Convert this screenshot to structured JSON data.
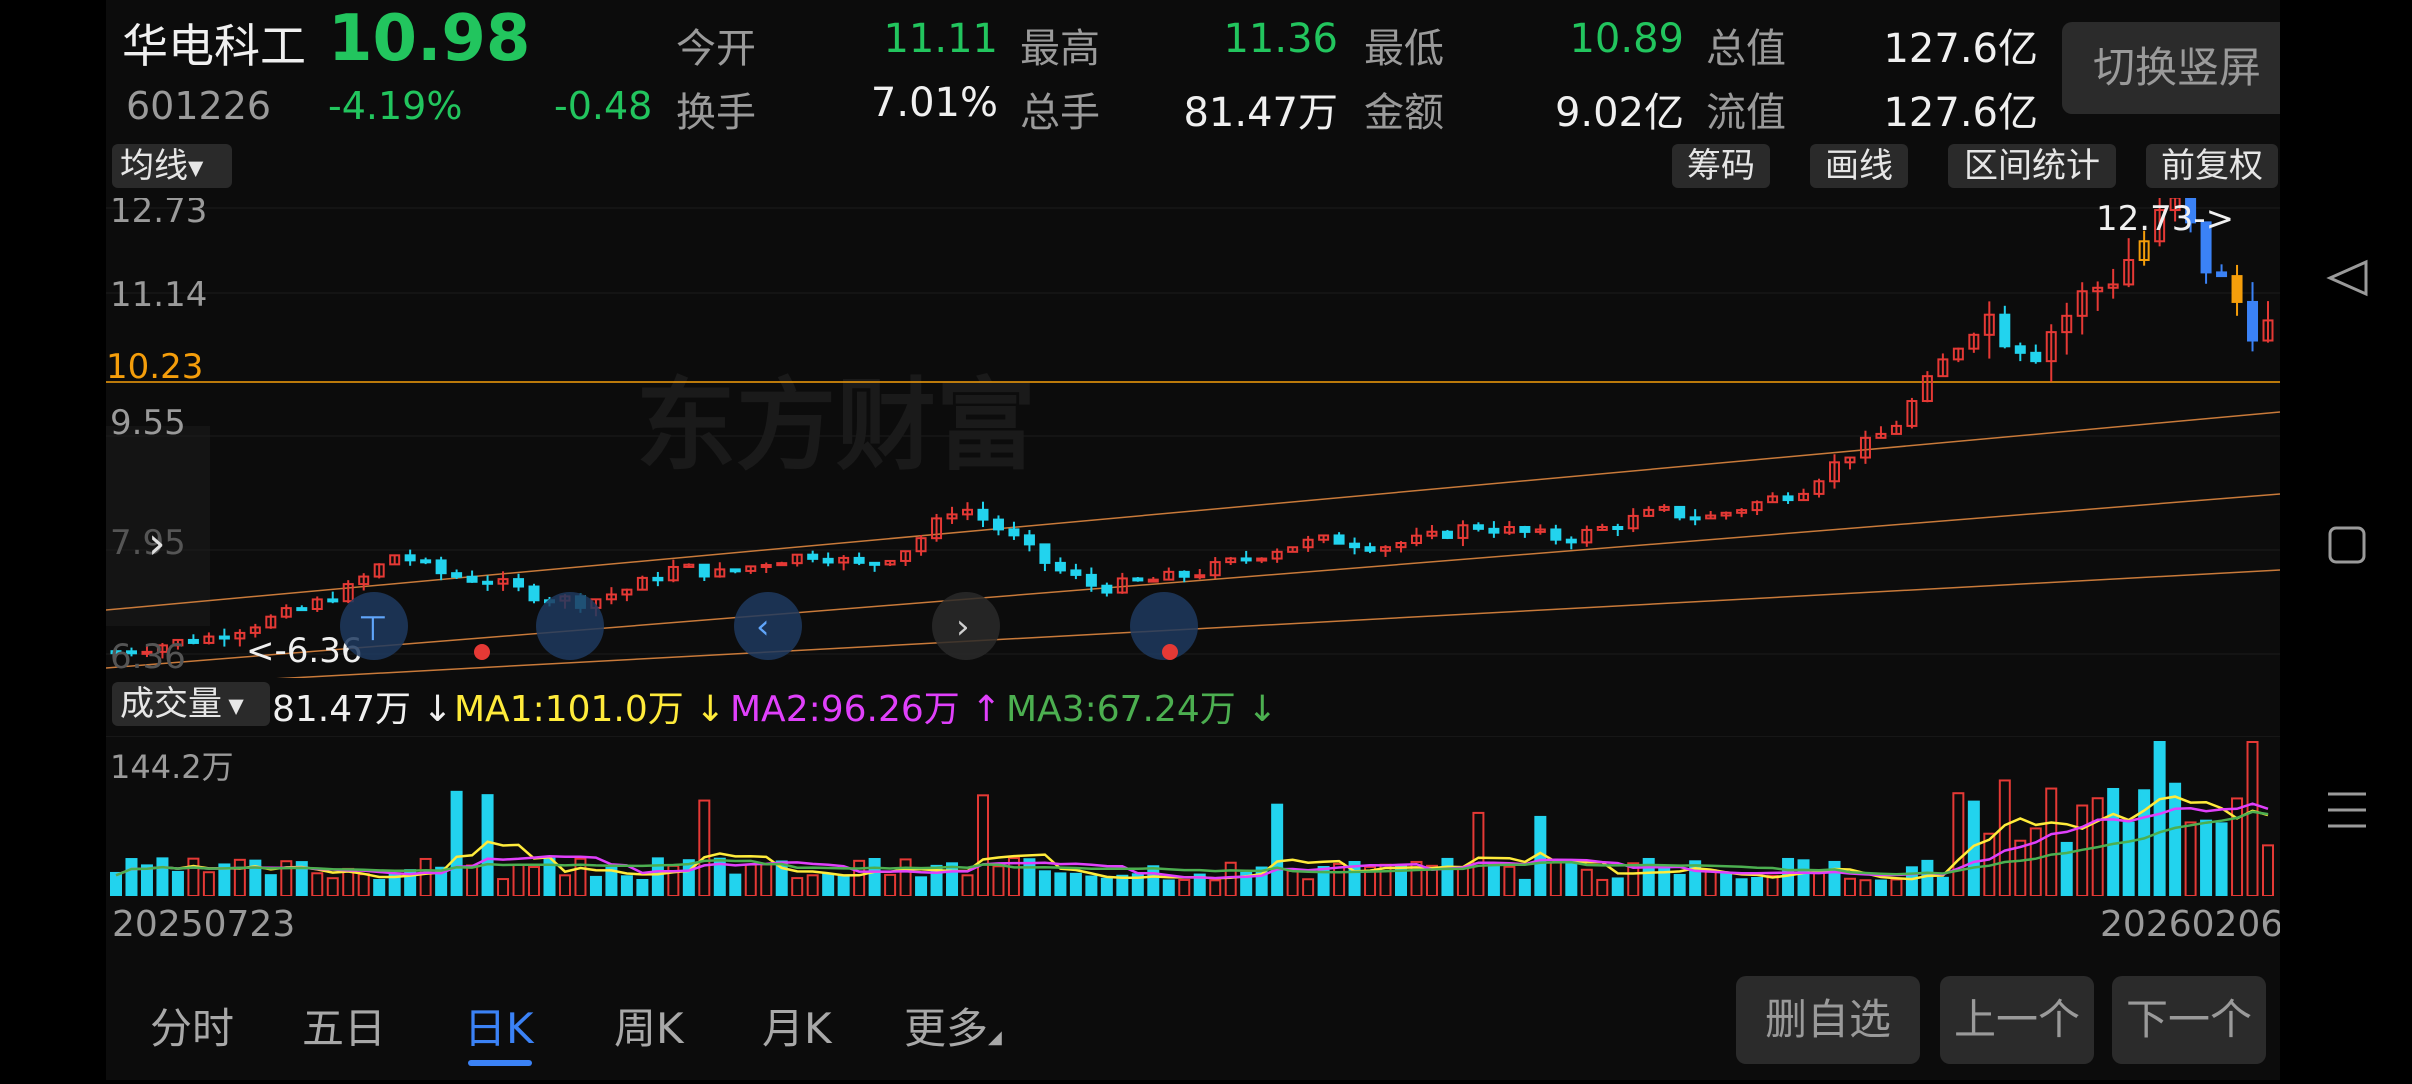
{
  "header": {
    "stock_name": "华电科工",
    "price": "10.98",
    "code": "601226",
    "change_pct": "-4.19%",
    "change": "-0.48",
    "fields": [
      {
        "label": "今开",
        "value": "11.11",
        "color": "#22c55e"
      },
      {
        "label": "最高",
        "value": "11.36",
        "color": "#22c55e"
      },
      {
        "label": "最低",
        "value": "10.89",
        "color": "#22c55e"
      },
      {
        "label": "总值",
        "value": "127.6亿",
        "color": "#f0f0f0"
      },
      {
        "label": "换手",
        "value": "7.01%",
        "color": "#f0f0f0"
      },
      {
        "label": "总手",
        "value": "81.47万",
        "color": "#f0f0f0"
      },
      {
        "label": "金额",
        "value": "9.02亿",
        "color": "#f0f0f0"
      },
      {
        "label": "流值",
        "value": "127.6亿",
        "color": "#f0f0f0"
      }
    ],
    "switch_button": "切换竖屏"
  },
  "toolbar": {
    "indicator_select": "均线",
    "buttons": [
      "筹码",
      "画线",
      "区间统计",
      "前复权"
    ]
  },
  "kline": {
    "y_labels": [
      "12.73",
      "11.14",
      "9.55",
      "7.95",
      "6.36"
    ],
    "ref_line_label": "10.23",
    "high_marker": "12.73->",
    "low_marker": "<-6.36",
    "watermark": "东方财富",
    "colors": {
      "up": "#e53935",
      "down": "#22d3ee",
      "ma": "#3b82f6",
      "accent": "#f59e0b",
      "channel": "#c97a3a"
    }
  },
  "volume": {
    "indicator_select": "成交量",
    "current": "81.47万",
    "ma1": "MA1:101.0万",
    "ma2": "MA2:96.26万",
    "ma3": "MA3:67.24万",
    "max_label": "144.2万",
    "ma_colors": {
      "ma1": "#ffeb3b",
      "ma2": "#e040fb",
      "ma3": "#4caf50"
    }
  },
  "dates": {
    "start": "20250723",
    "end": "20260206"
  },
  "tabs": [
    "分时",
    "五日",
    "日K",
    "周K",
    "月K",
    "更多"
  ],
  "active_tab": 2,
  "actions": [
    "删自选",
    "上一个",
    "下一个"
  ],
  "chart_data": {
    "type": "candlestick",
    "x_range": [
      "20250723",
      "20260206"
    ],
    "ylim": [
      6.36,
      12.73
    ],
    "close_samples": [
      6.4,
      6.5,
      6.6,
      6.8,
      7.0,
      7.3,
      7.8,
      7.5,
      7.4,
      7.2,
      7.1,
      7.3,
      7.6,
      7.5,
      7.7,
      7.8,
      7.6,
      7.9,
      8.5,
      8.1,
      7.6,
      7.3,
      7.4,
      7.5,
      7.7,
      7.9,
      8.0,
      7.9,
      8.0,
      8.2,
      8.1,
      8.0,
      8.2,
      8.4,
      8.3,
      8.5,
      8.7,
      9.2,
      9.6,
      10.5,
      11.2,
      10.8,
      11.4,
      12.0,
      12.73,
      11.6,
      10.98
    ],
    "volume_max": "144.2万"
  }
}
